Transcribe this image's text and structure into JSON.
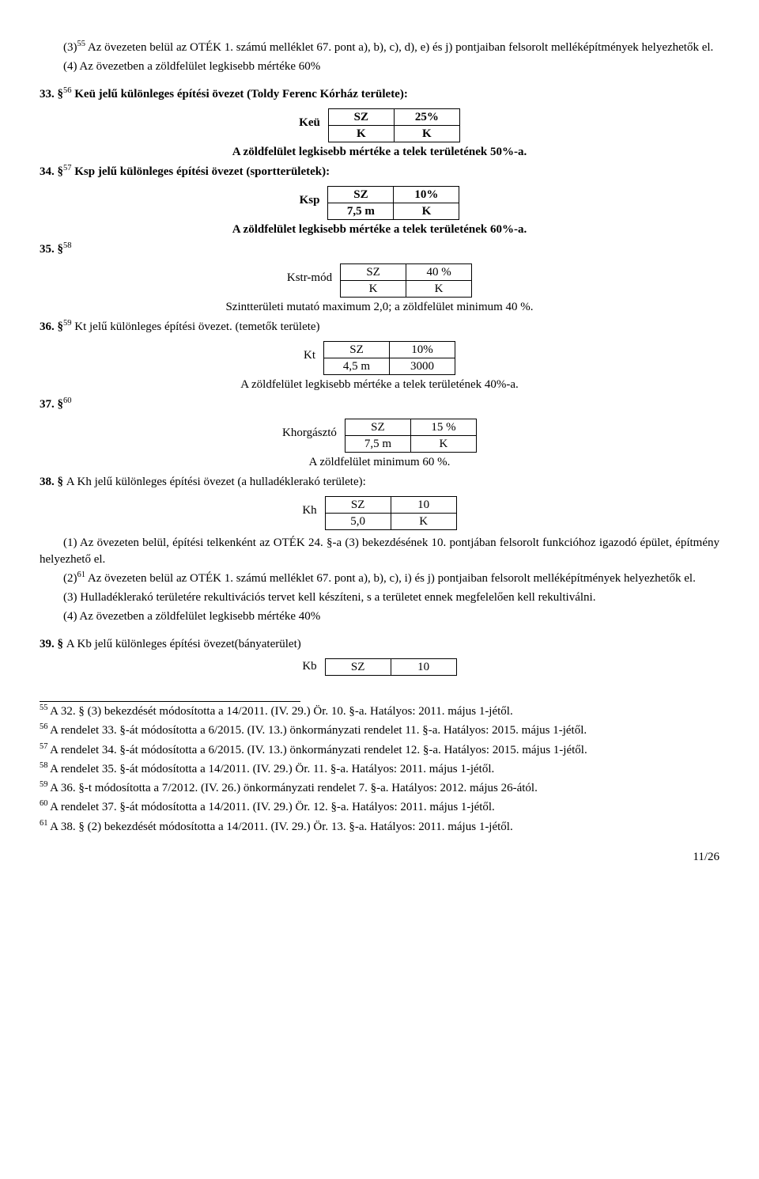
{
  "para_3_line1": "(3)",
  "para_3_sup": "55",
  "para_3_line1b": " Az övezeten belül az OTÉK 1. számú melléklet 67. pont a), b), c), d), e) és j) pontjaiban felsorolt melléképítmények helyezhetők el.",
  "para_4": "(4) Az övezetben a zöldfelület legkisebb mértéke 60%",
  "sec33_num": "33. §",
  "sec33_sup": "56",
  "sec33_title": " Keü jelű különleges építési övezet (Toldy Ferenc Kórház területe):",
  "t33": {
    "label": "Keü",
    "r1c1": "SZ",
    "r1c2": "25%",
    "r2c1": "K",
    "r2c2": "K"
  },
  "t33_note": "A zöldfelület legkisebb mértéke a telek területének 50%-a.",
  "sec34_num": "34. §",
  "sec34_sup": "57",
  "sec34_title": " Ksp jelű különleges építési övezet (sportterületek):",
  "t34": {
    "label": "Ksp",
    "r1c1": "SZ",
    "r1c2": "10%",
    "r2c1": "7,5 m",
    "r2c2": "K"
  },
  "t34_note": "A zöldfelület legkisebb mértéke a telek területének 60%-a.",
  "sec35_num": "35. §",
  "sec35_sup": "58",
  "t35": {
    "label": "Kstr-mód",
    "r1c1": "SZ",
    "r1c2": "40 %",
    "r2c1": "K",
    "r2c2": "K"
  },
  "t35_note": "Szintterületi mutató maximum 2,0; a zöldfelület minimum 40 %.",
  "sec36_num": "36. §",
  "sec36_sup": "59",
  "sec36_title": " Kt jelű különleges építési övezet. (temetők területe)",
  "t36": {
    "label": "Kt",
    "r1c1": "SZ",
    "r1c2": "10%",
    "r2c1": "4,5 m",
    "r2c2": "3000"
  },
  "t36_note": "A zöldfelület legkisebb mértéke a telek területének 40%-a.",
  "sec37_num": "37. §",
  "sec37_sup": "60",
  "t37": {
    "label": "Khorgásztó",
    "r1c1": "SZ",
    "r1c2": "15 %",
    "r2c1": "7,5 m",
    "r2c2": "K"
  },
  "t37_note": "A zöldfelület minimum 60 %.",
  "sec38_num": "38. § ",
  "sec38_title": "A Kh jelű különleges építési övezet (a hulladéklerakó területe):",
  "t38": {
    "label": "Kh",
    "r1c1": "SZ",
    "r1c2": "10",
    "r2c1": "5,0",
    "r2c2": "K"
  },
  "p38_1": "(1) Az övezeten belül, építési telkenként az OTÉK 24. §-a (3) bekezdésének 10. pontjában felsorolt funkcióhoz igazodó épület, építmény helyezhető el.",
  "p38_2a": "(2)",
  "p38_2sup": "61",
  "p38_2b": " Az övezeten belül az OTÉK 1. számú melléklet 67. pont a), b), c), i) és j) pontjaiban felsorolt melléképítmények helyezhetők el.",
  "p38_3": "(3) Hulladéklerakó területére rekultivációs tervet kell készíteni, s a területet ennek megfelelően kell rekultiválni.",
  "p38_4": "(4) Az övezetben a zöldfelület legkisebb mértéke 40%",
  "sec39_num": "39. § ",
  "sec39_title": "A Kb jelű különleges építési övezet(bányaterület)",
  "t39": {
    "label": "Kb",
    "r1c1": "SZ",
    "r1c2": "10"
  },
  "footnotes": {
    "f55": "A 32. § (3) bekezdését módosította a 14/2011. (IV. 29.) Ör. 10. §-a. Hatályos: 2011. május 1-jétől.",
    "f56": "A rendelet 33. §-át módosította a 6/2015. (IV. 13.) önkormányzati rendelet 11. §-a. Hatályos: 2015. május 1-jétől.",
    "f57": "A rendelet 34. §-át módosította a 6/2015. (IV. 13.) önkormányzati rendelet 12. §-a. Hatályos: 2015. május 1-jétől.",
    "f58": "A rendelet 35. §-át módosította a 14/2011. (IV. 29.) Ör. 11. §-a. Hatályos: 2011. május 1-jétől.",
    "f59": "A 36. §-t módosította a 7/2012. (IV. 26.) önkormányzati rendelet 7. §-a. Hatályos: 2012. május 26-ától.",
    "f60": "A rendelet 37. §-át módosította a 14/2011. (IV. 29.) Ör. 12. §-a. Hatályos: 2011. május 1-jétől.",
    "f61": "A 38. § (2) bekezdését módosította a 14/2011. (IV. 29.) Ör. 13. §-a. Hatályos: 2011. május 1-jétől.",
    "n55": "55 ",
    "n56": "56 ",
    "n57": "57 ",
    "n58": "58 ",
    "n59": "59 ",
    "n60": "60 ",
    "n61": "61 "
  },
  "page_number": "11/26"
}
